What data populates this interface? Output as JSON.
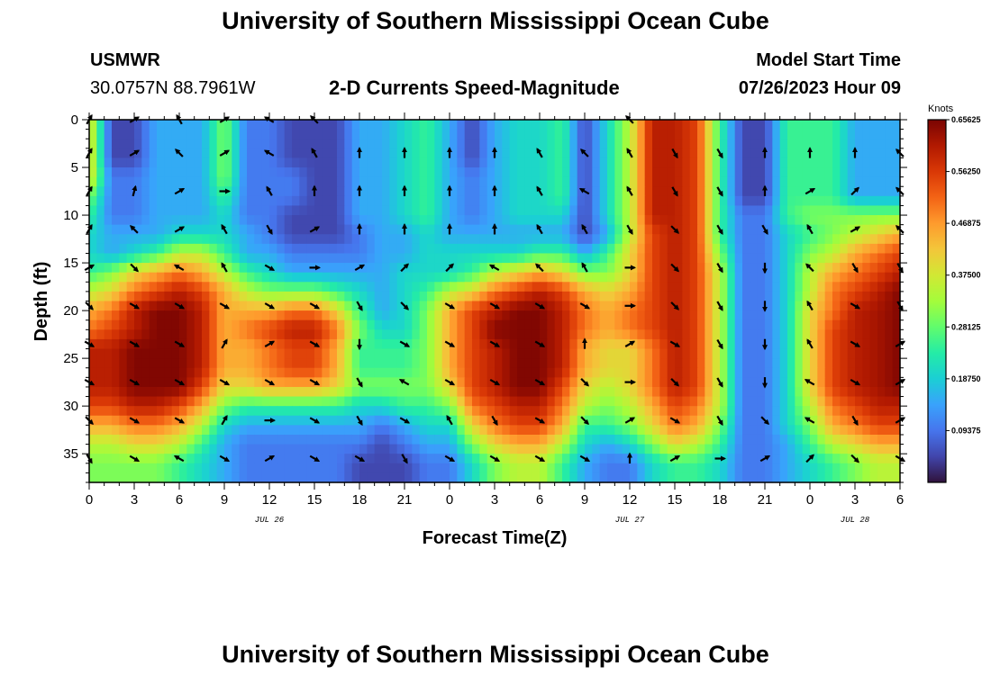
{
  "header": {
    "title": "University of Southern Mississippi Ocean Cube",
    "station": "USMWR",
    "location": "30.0757N  88.7961W",
    "subtitle": "2-D Currents Speed-Magnitude",
    "model_start_label": "Model Start Time",
    "model_start_value": "07/26/2023 Hour 09"
  },
  "footer": {
    "title": "University of Southern Mississippi Ocean Cube"
  },
  "chart_data": {
    "type": "heatmap",
    "title": "2-D Currents Speed-Magnitude",
    "xlabel": "Forecast Time(Z)",
    "ylabel": "Depth (ft)",
    "x_tick_labels": [
      "0",
      "3",
      "6",
      "9",
      "12",
      "15",
      "18",
      "21",
      "0",
      "3",
      "6",
      "9",
      "12",
      "15",
      "18",
      "21",
      "0",
      "3",
      "6"
    ],
    "x_hours_since_start": [
      0,
      3,
      6,
      9,
      12,
      15,
      18,
      21,
      24,
      27,
      30,
      33,
      36,
      39,
      42,
      45,
      48,
      51,
      54
    ],
    "xlim": [
      0,
      54
    ],
    "y_ticks": [
      0,
      5,
      10,
      15,
      20,
      25,
      30,
      35
    ],
    "ylim": [
      0,
      38
    ],
    "y_inverted": true,
    "date_labels": [
      {
        "text": "JUL 26",
        "hour": 12
      },
      {
        "text": "JUL 27",
        "hour": 36
      },
      {
        "text": "JUL 28",
        "hour": 51
      }
    ],
    "colorbar": {
      "unit": "Knots",
      "min": 0.0,
      "max": 0.65625,
      "tick_values": [
        0.65625,
        0.5625,
        0.46875,
        0.375,
        0.28125,
        0.1875,
        0.09375
      ],
      "tick_labels": [
        "0.65625",
        "0.56250",
        "0.46875",
        "0.37500",
        "0.28125",
        "0.18750",
        "0.09375"
      ],
      "colors": [
        "#30123b",
        "#4145ab",
        "#4675ed",
        "#39a2fc",
        "#1bcfd4",
        "#24eca6",
        "#61fc6c",
        "#a4fc3b",
        "#d1e834",
        "#f3c63a",
        "#fe9b2d",
        "#f36315",
        "#d93806",
        "#b11901",
        "#7a0402"
      ]
    },
    "grid_times": [
      0,
      1.5,
      3,
      4.5,
      6,
      7.5,
      9,
      10.5,
      12,
      13.5,
      15,
      16.5,
      18,
      19.5,
      21,
      22.5,
      24,
      25.5,
      27,
      28.5,
      30,
      31.5,
      33,
      34.5,
      36,
      37.5,
      39,
      40.5,
      42,
      43.5,
      45,
      46.5,
      48,
      49.5,
      51,
      52.5,
      54
    ],
    "grid_depths": [
      0,
      2,
      4,
      6,
      8,
      10,
      12,
      14,
      16,
      18,
      20,
      22,
      24,
      26,
      28,
      30,
      32,
      34,
      36,
      38
    ],
    "speed_knots": [
      [
        0.4,
        0.05,
        0.05,
        0.15,
        0.15,
        0.15,
        0.3,
        0.1,
        0.1,
        0.05,
        0.05,
        0.05,
        0.15,
        0.15,
        0.2,
        0.25,
        0.15,
        0.05,
        0.15,
        0.2,
        0.2,
        0.25,
        0.05,
        0.2,
        0.35,
        0.6,
        0.6,
        0.55,
        0.25,
        0.05,
        0.05,
        0.25,
        0.25,
        0.25,
        0.15,
        0.15,
        0.15
      ],
      [
        0.4,
        0.05,
        0.05,
        0.15,
        0.15,
        0.15,
        0.3,
        0.1,
        0.1,
        0.05,
        0.05,
        0.05,
        0.15,
        0.15,
        0.2,
        0.25,
        0.15,
        0.05,
        0.15,
        0.2,
        0.2,
        0.25,
        0.05,
        0.2,
        0.35,
        0.6,
        0.6,
        0.55,
        0.25,
        0.05,
        0.05,
        0.25,
        0.25,
        0.25,
        0.15,
        0.15,
        0.15
      ],
      [
        0.4,
        0.05,
        0.05,
        0.15,
        0.15,
        0.15,
        0.3,
        0.1,
        0.1,
        0.05,
        0.05,
        0.05,
        0.15,
        0.15,
        0.2,
        0.25,
        0.15,
        0.05,
        0.15,
        0.2,
        0.2,
        0.25,
        0.05,
        0.2,
        0.35,
        0.6,
        0.6,
        0.55,
        0.25,
        0.05,
        0.05,
        0.25,
        0.25,
        0.25,
        0.15,
        0.15,
        0.15
      ],
      [
        0.4,
        0.1,
        0.1,
        0.15,
        0.15,
        0.15,
        0.3,
        0.1,
        0.1,
        0.1,
        0.05,
        0.05,
        0.15,
        0.15,
        0.2,
        0.25,
        0.15,
        0.1,
        0.15,
        0.2,
        0.2,
        0.25,
        0.05,
        0.2,
        0.35,
        0.6,
        0.6,
        0.55,
        0.25,
        0.05,
        0.05,
        0.25,
        0.25,
        0.25,
        0.15,
        0.15,
        0.15
      ],
      [
        0.3,
        0.1,
        0.1,
        0.15,
        0.15,
        0.15,
        0.25,
        0.1,
        0.1,
        0.1,
        0.05,
        0.05,
        0.15,
        0.15,
        0.2,
        0.25,
        0.15,
        0.1,
        0.15,
        0.2,
        0.2,
        0.25,
        0.05,
        0.2,
        0.35,
        0.6,
        0.6,
        0.55,
        0.25,
        0.05,
        0.05,
        0.25,
        0.25,
        0.25,
        0.15,
        0.15,
        0.15
      ],
      [
        0.25,
        0.1,
        0.1,
        0.15,
        0.15,
        0.15,
        0.2,
        0.1,
        0.1,
        0.05,
        0.05,
        0.05,
        0.15,
        0.15,
        0.2,
        0.25,
        0.15,
        0.1,
        0.15,
        0.2,
        0.2,
        0.2,
        0.05,
        0.2,
        0.35,
        0.6,
        0.6,
        0.55,
        0.25,
        0.1,
        0.1,
        0.25,
        0.3,
        0.3,
        0.3,
        0.3,
        0.3
      ],
      [
        0.2,
        0.15,
        0.15,
        0.15,
        0.2,
        0.2,
        0.2,
        0.15,
        0.1,
        0.05,
        0.05,
        0.05,
        0.1,
        0.15,
        0.15,
        0.2,
        0.15,
        0.15,
        0.15,
        0.15,
        0.15,
        0.15,
        0.05,
        0.15,
        0.35,
        0.55,
        0.6,
        0.55,
        0.25,
        0.1,
        0.1,
        0.2,
        0.25,
        0.3,
        0.35,
        0.4,
        0.45
      ],
      [
        0.2,
        0.15,
        0.2,
        0.25,
        0.35,
        0.35,
        0.25,
        0.15,
        0.15,
        0.1,
        0.1,
        0.1,
        0.1,
        0.15,
        0.15,
        0.2,
        0.2,
        0.2,
        0.2,
        0.2,
        0.25,
        0.25,
        0.15,
        0.25,
        0.4,
        0.55,
        0.6,
        0.55,
        0.3,
        0.1,
        0.1,
        0.2,
        0.3,
        0.35,
        0.45,
        0.5,
        0.55
      ],
      [
        0.25,
        0.3,
        0.4,
        0.45,
        0.5,
        0.45,
        0.35,
        0.25,
        0.2,
        0.15,
        0.15,
        0.15,
        0.15,
        0.15,
        0.2,
        0.2,
        0.2,
        0.25,
        0.35,
        0.4,
        0.45,
        0.4,
        0.3,
        0.3,
        0.4,
        0.55,
        0.6,
        0.55,
        0.35,
        0.1,
        0.1,
        0.2,
        0.35,
        0.45,
        0.5,
        0.55,
        0.6
      ],
      [
        0.35,
        0.4,
        0.5,
        0.55,
        0.6,
        0.55,
        0.45,
        0.35,
        0.3,
        0.3,
        0.3,
        0.25,
        0.2,
        0.15,
        0.2,
        0.25,
        0.35,
        0.4,
        0.5,
        0.55,
        0.6,
        0.55,
        0.45,
        0.4,
        0.45,
        0.55,
        0.6,
        0.55,
        0.35,
        0.1,
        0.1,
        0.2,
        0.35,
        0.5,
        0.55,
        0.6,
        0.65
      ],
      [
        0.45,
        0.5,
        0.6,
        0.65,
        0.65,
        0.6,
        0.45,
        0.45,
        0.45,
        0.5,
        0.5,
        0.4,
        0.25,
        0.15,
        0.2,
        0.3,
        0.45,
        0.55,
        0.6,
        0.65,
        0.65,
        0.6,
        0.5,
        0.45,
        0.5,
        0.55,
        0.6,
        0.55,
        0.35,
        0.1,
        0.1,
        0.2,
        0.4,
        0.5,
        0.6,
        0.62,
        0.65
      ],
      [
        0.5,
        0.55,
        0.6,
        0.65,
        0.65,
        0.6,
        0.45,
        0.5,
        0.55,
        0.6,
        0.6,
        0.5,
        0.3,
        0.2,
        0.2,
        0.3,
        0.45,
        0.55,
        0.65,
        0.65,
        0.65,
        0.6,
        0.5,
        0.45,
        0.5,
        0.55,
        0.6,
        0.55,
        0.35,
        0.1,
        0.1,
        0.2,
        0.4,
        0.55,
        0.6,
        0.62,
        0.65
      ],
      [
        0.6,
        0.6,
        0.65,
        0.65,
        0.65,
        0.6,
        0.45,
        0.45,
        0.5,
        0.55,
        0.55,
        0.45,
        0.25,
        0.25,
        0.25,
        0.3,
        0.45,
        0.55,
        0.6,
        0.65,
        0.65,
        0.6,
        0.45,
        0.4,
        0.4,
        0.5,
        0.6,
        0.55,
        0.35,
        0.1,
        0.1,
        0.2,
        0.4,
        0.55,
        0.6,
        0.62,
        0.65
      ],
      [
        0.6,
        0.6,
        0.65,
        0.65,
        0.65,
        0.6,
        0.45,
        0.45,
        0.5,
        0.55,
        0.55,
        0.45,
        0.25,
        0.25,
        0.25,
        0.3,
        0.45,
        0.55,
        0.6,
        0.65,
        0.65,
        0.6,
        0.45,
        0.4,
        0.4,
        0.5,
        0.6,
        0.55,
        0.35,
        0.1,
        0.1,
        0.2,
        0.4,
        0.55,
        0.6,
        0.62,
        0.65
      ],
      [
        0.6,
        0.6,
        0.65,
        0.65,
        0.65,
        0.55,
        0.4,
        0.4,
        0.45,
        0.45,
        0.45,
        0.4,
        0.3,
        0.3,
        0.3,
        0.3,
        0.4,
        0.55,
        0.6,
        0.65,
        0.65,
        0.55,
        0.4,
        0.35,
        0.4,
        0.5,
        0.6,
        0.55,
        0.35,
        0.1,
        0.1,
        0.2,
        0.4,
        0.55,
        0.6,
        0.62,
        0.65
      ],
      [
        0.55,
        0.55,
        0.6,
        0.6,
        0.55,
        0.45,
        0.3,
        0.25,
        0.25,
        0.25,
        0.25,
        0.25,
        0.2,
        0.2,
        0.25,
        0.25,
        0.3,
        0.5,
        0.55,
        0.6,
        0.6,
        0.5,
        0.35,
        0.3,
        0.35,
        0.45,
        0.55,
        0.5,
        0.35,
        0.1,
        0.1,
        0.2,
        0.35,
        0.5,
        0.55,
        0.6,
        0.6
      ],
      [
        0.45,
        0.45,
        0.5,
        0.5,
        0.45,
        0.35,
        0.2,
        0.15,
        0.15,
        0.15,
        0.15,
        0.15,
        0.15,
        0.1,
        0.15,
        0.2,
        0.2,
        0.4,
        0.5,
        0.55,
        0.55,
        0.45,
        0.25,
        0.25,
        0.3,
        0.4,
        0.5,
        0.45,
        0.3,
        0.1,
        0.1,
        0.2,
        0.3,
        0.45,
        0.5,
        0.55,
        0.55
      ],
      [
        0.35,
        0.35,
        0.4,
        0.4,
        0.35,
        0.25,
        0.15,
        0.1,
        0.1,
        0.1,
        0.1,
        0.1,
        0.1,
        0.05,
        0.1,
        0.15,
        0.15,
        0.3,
        0.4,
        0.45,
        0.45,
        0.35,
        0.2,
        0.15,
        0.2,
        0.3,
        0.4,
        0.35,
        0.25,
        0.1,
        0.1,
        0.15,
        0.25,
        0.35,
        0.4,
        0.45,
        0.45
      ],
      [
        0.3,
        0.3,
        0.3,
        0.3,
        0.25,
        0.2,
        0.15,
        0.1,
        0.1,
        0.1,
        0.1,
        0.1,
        0.05,
        0.05,
        0.05,
        0.1,
        0.1,
        0.2,
        0.3,
        0.35,
        0.35,
        0.25,
        0.15,
        0.1,
        0.1,
        0.2,
        0.25,
        0.25,
        0.2,
        0.1,
        0.1,
        0.15,
        0.2,
        0.25,
        0.3,
        0.35,
        0.35
      ],
      [
        0.3,
        0.3,
        0.3,
        0.3,
        0.25,
        0.2,
        0.15,
        0.1,
        0.1,
        0.1,
        0.1,
        0.1,
        0.05,
        0.05,
        0.05,
        0.1,
        0.1,
        0.2,
        0.3,
        0.35,
        0.35,
        0.25,
        0.15,
        0.1,
        0.1,
        0.2,
        0.25,
        0.25,
        0.2,
        0.1,
        0.1,
        0.15,
        0.2,
        0.25,
        0.3,
        0.35,
        0.35
      ]
    ],
    "vector_times": [
      0,
      3,
      6,
      9,
      12,
      15,
      18,
      21,
      24,
      27,
      30,
      33,
      36,
      39,
      42,
      45,
      48,
      51,
      54
    ],
    "vector_depths": [
      0,
      3.5,
      7.5,
      11.5,
      15.5,
      19.5,
      23.5,
      27.5,
      31.5,
      35.5
    ],
    "vector_direction_deg": [
      [
        30,
        60,
        330,
        60,
        300,
        315,
        null,
        null,
        null,
        null,
        null,
        null,
        315,
        null,
        null,
        null,
        null,
        null,
        null
      ],
      [
        30,
        60,
        315,
        60,
        300,
        330,
        0,
        0,
        0,
        0,
        330,
        315,
        330,
        150,
        150,
        0,
        0,
        0,
        315
      ],
      [
        30,
        15,
        60,
        90,
        330,
        0,
        0,
        0,
        0,
        0,
        330,
        300,
        330,
        150,
        150,
        0,
        60,
        45,
        315
      ],
      [
        30,
        315,
        60,
        330,
        150,
        60,
        0,
        0,
        0,
        0,
        330,
        330,
        150,
        135,
        150,
        150,
        330,
        60,
        315
      ],
      [
        60,
        135,
        300,
        330,
        120,
        90,
        60,
        45,
        45,
        300,
        315,
        330,
        90,
        135,
        150,
        180,
        315,
        150,
        150
      ],
      [
        135,
        120,
        120,
        120,
        120,
        120,
        150,
        135,
        120,
        120,
        120,
        120,
        90,
        135,
        150,
        180,
        330,
        120,
        150
      ],
      [
        120,
        120,
        120,
        30,
        60,
        120,
        180,
        120,
        120,
        120,
        120,
        0,
        60,
        120,
        150,
        180,
        330,
        120,
        60
      ],
      [
        120,
        120,
        120,
        120,
        120,
        120,
        150,
        300,
        120,
        120,
        120,
        135,
        90,
        135,
        150,
        180,
        300,
        120,
        60
      ],
      [
        135,
        120,
        120,
        30,
        90,
        120,
        150,
        120,
        330,
        150,
        120,
        135,
        60,
        120,
        150,
        135,
        300,
        150,
        60
      ],
      [
        150,
        120,
        300,
        120,
        60,
        120,
        120,
        150,
        120,
        120,
        120,
        120,
        0,
        60,
        90,
        60,
        45,
        135,
        120
      ]
    ]
  }
}
